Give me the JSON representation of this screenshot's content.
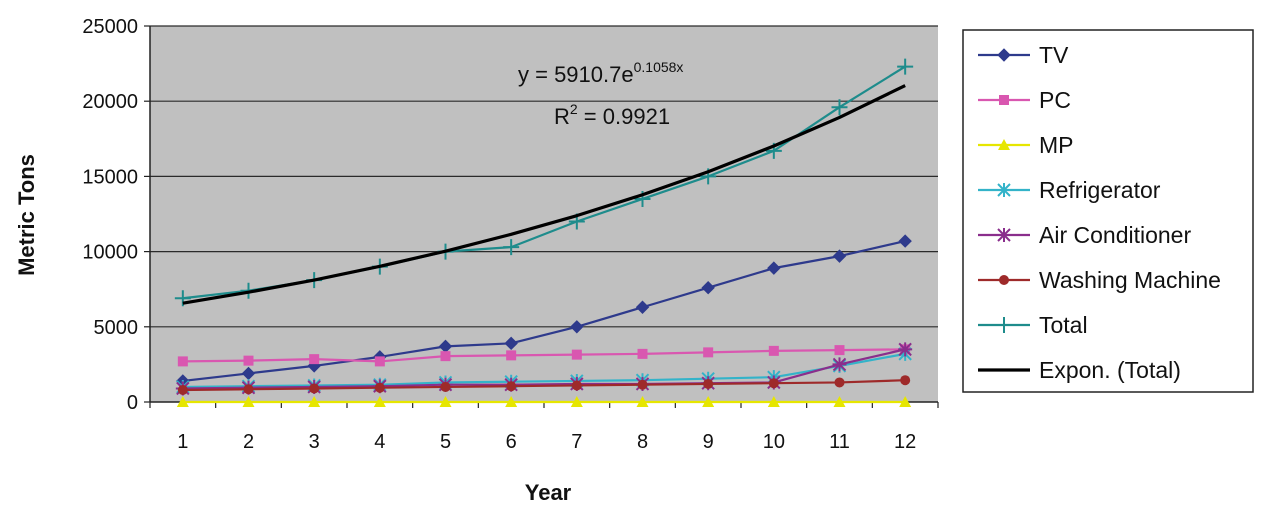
{
  "chart_data": {
    "type": "line",
    "xlabel": "Year",
    "ylabel": "Metric Tons",
    "x": [
      1,
      2,
      3,
      4,
      5,
      6,
      7,
      8,
      9,
      10,
      11,
      12
    ],
    "xlim": [
      0.5,
      12.5
    ],
    "ylim": [
      0,
      25000
    ],
    "yticks": [
      0,
      5000,
      10000,
      15000,
      20000,
      25000
    ],
    "grid": "horizontal",
    "legend_position": "right",
    "series": [
      {
        "name": "TV",
        "color": "#2e3a8c",
        "marker": "diamond",
        "values": [
          1400,
          1900,
          2400,
          3000,
          3700,
          3900,
          5000,
          6300,
          7600,
          8900,
          9700,
          10700
        ]
      },
      {
        "name": "PC",
        "color": "#d957b0",
        "marker": "square",
        "values": [
          2700,
          2750,
          2850,
          2700,
          3050,
          3100,
          3150,
          3200,
          3300,
          3400,
          3450,
          3500
        ]
      },
      {
        "name": "MP",
        "color": "#e6e600",
        "marker": "triangle",
        "values": [
          0,
          0,
          0,
          0,
          0,
          0,
          0,
          0,
          0,
          0,
          0,
          0
        ]
      },
      {
        "name": "Refrigerator",
        "color": "#33b3c9",
        "marker": "asterisk-x",
        "values": [
          1000,
          1050,
          1100,
          1150,
          1300,
          1350,
          1400,
          1450,
          1550,
          1650,
          2400,
          3200
        ]
      },
      {
        "name": "Air Conditioner",
        "color": "#8a2e8c",
        "marker": "asterisk",
        "values": [
          900,
          950,
          1000,
          1050,
          1150,
          1150,
          1200,
          1200,
          1250,
          1300,
          2500,
          3500
        ]
      },
      {
        "name": "Washing Machine",
        "color": "#9e2a2a",
        "marker": "circle",
        "values": [
          800,
          850,
          900,
          950,
          1000,
          1050,
          1100,
          1150,
          1200,
          1250,
          1300,
          1450
        ]
      },
      {
        "name": "Total",
        "color": "#1e8c8c",
        "marker": "plus",
        "values": [
          6900,
          7400,
          8100,
          9000,
          10000,
          10300,
          12000,
          13500,
          15000,
          16700,
          19600,
          22300
        ]
      },
      {
        "name": "Expon. (Total)",
        "color": "#000000",
        "marker": "none",
        "trendline": true,
        "values": [
          6570,
          7300,
          8110,
          9020,
          10030,
          11150,
          12390,
          13780,
          15310,
          17020,
          18920,
          21040
        ]
      }
    ],
    "annotation": {
      "equation_prefix": "y = 5910.7e",
      "equation_exponent": "0.1058x",
      "r2_prefix": "R",
      "r2_sup": "2",
      "r2_suffix": " = 0.9921"
    }
  }
}
